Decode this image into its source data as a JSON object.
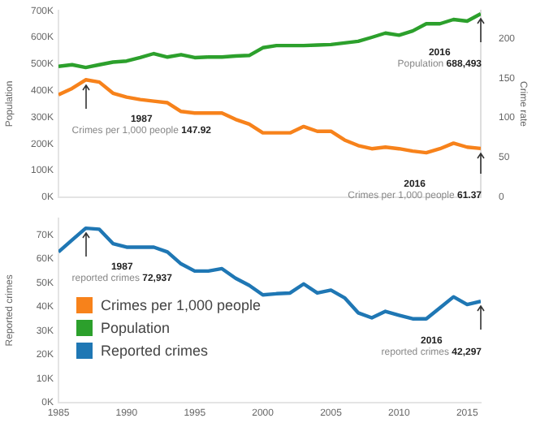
{
  "chart_data": [
    {
      "type": "line",
      "ylabel": "Population",
      "y2label": "Crime rate",
      "x": [
        1985,
        1986,
        1987,
        1988,
        1989,
        1990,
        1991,
        1992,
        1993,
        1994,
        1995,
        1996,
        1997,
        1998,
        1999,
        2000,
        2001,
        2002,
        2003,
        2004,
        2005,
        2006,
        2007,
        2008,
        2009,
        2010,
        2011,
        2012,
        2013,
        2014,
        2015,
        2016
      ],
      "series": [
        {
          "name": "Crimes per 1,000 people",
          "color": "#f7821b",
          "axis": "y2",
          "values": [
            129,
            137,
            147.92,
            145,
            131,
            126,
            123,
            121,
            119,
            108,
            106,
            106,
            106,
            98,
            92,
            81,
            81,
            81,
            89,
            83,
            83,
            72,
            65,
            61,
            63,
            61,
            58,
            56,
            61,
            68,
            63,
            61.37
          ]
        },
        {
          "name": "Population",
          "color": "#2ca02c",
          "values": [
            491000,
            497000,
            487000,
            497000,
            507000,
            511000,
            524000,
            539000,
            526000,
            535000,
            524000,
            526000,
            526000,
            530000,
            532000,
            561000,
            569000,
            569000,
            569000,
            571000,
            573000,
            579000,
            585000,
            600000,
            616000,
            608000,
            624000,
            651000,
            651000,
            667000,
            661000,
            688493
          ]
        }
      ],
      "xlim": [
        1985,
        2016
      ],
      "xticks": [
        1985,
        1990,
        1995,
        2000,
        2005,
        2010,
        2015
      ],
      "ylim": [
        0,
        700000
      ],
      "yticks": [
        {
          "value": 0,
          "label": "0K"
        },
        {
          "value": 100000,
          "label": "100K"
        },
        {
          "value": 200000,
          "label": "200K"
        },
        {
          "value": 300000,
          "label": "300K"
        },
        {
          "value": 400000,
          "label": "400K"
        },
        {
          "value": 500000,
          "label": "500K"
        },
        {
          "value": 600000,
          "label": "600K"
        },
        {
          "value": 700000,
          "label": "700K"
        }
      ],
      "y2lim": [
        0,
        235
      ],
      "y2ticks": [
        0,
        50,
        100,
        150,
        200
      ],
      "tick_labels": "y",
      "legend": "bottom",
      "marker": "none",
      "line_style": "solid",
      "annotations": [
        "1987\nCrimes per 1,000 people 147.92",
        "2016\nCrimes per 1,000 people 61.37",
        "2016\nPopulation 688,493"
      ]
    },
    {
      "type": "line",
      "ylabel": "Reported crimes",
      "x": [
        1985,
        1986,
        1987,
        1988,
        1989,
        1990,
        1991,
        1992,
        1993,
        1994,
        1995,
        1996,
        1997,
        1998,
        1999,
        2000,
        2001,
        2002,
        2003,
        2004,
        2005,
        2006,
        2007,
        2008,
        2009,
        2010,
        2011,
        2012,
        2013,
        2014,
        2015,
        2016
      ],
      "series": [
        {
          "name": "Reported crimes",
          "color": "#1f77b4",
          "values": [
            63000,
            68000,
            72937,
            72500,
            66500,
            65000,
            65000,
            65000,
            63000,
            58000,
            55000,
            55000,
            56000,
            52000,
            49000,
            45000,
            45500,
            45800,
            49600,
            45800,
            47000,
            43800,
            37500,
            35400,
            38100,
            36500,
            35000,
            35000,
            39600,
            44200,
            41000,
            42297
          ]
        }
      ],
      "xlim": [
        1985,
        2016
      ],
      "xticks": [
        1985,
        1990,
        1995,
        2000,
        2005,
        2010,
        2015
      ],
      "ylim": [
        0,
        77000
      ],
      "yticks": [
        {
          "value": 0,
          "label": "0K"
        },
        {
          "value": 10000,
          "label": "10K"
        },
        {
          "value": 20000,
          "label": "20K"
        },
        {
          "value": 30000,
          "label": "30K"
        },
        {
          "value": 40000,
          "label": "40K"
        },
        {
          "value": 50000,
          "label": "50K"
        },
        {
          "value": 60000,
          "label": "60K"
        },
        {
          "value": 70000,
          "label": "70K"
        }
      ],
      "legend": "left",
      "marker": "none",
      "line_style": "solid",
      "annotations": [
        "1987\nreported crimes 72,937",
        "2016\nreported crimes 42,297"
      ]
    }
  ]
}
